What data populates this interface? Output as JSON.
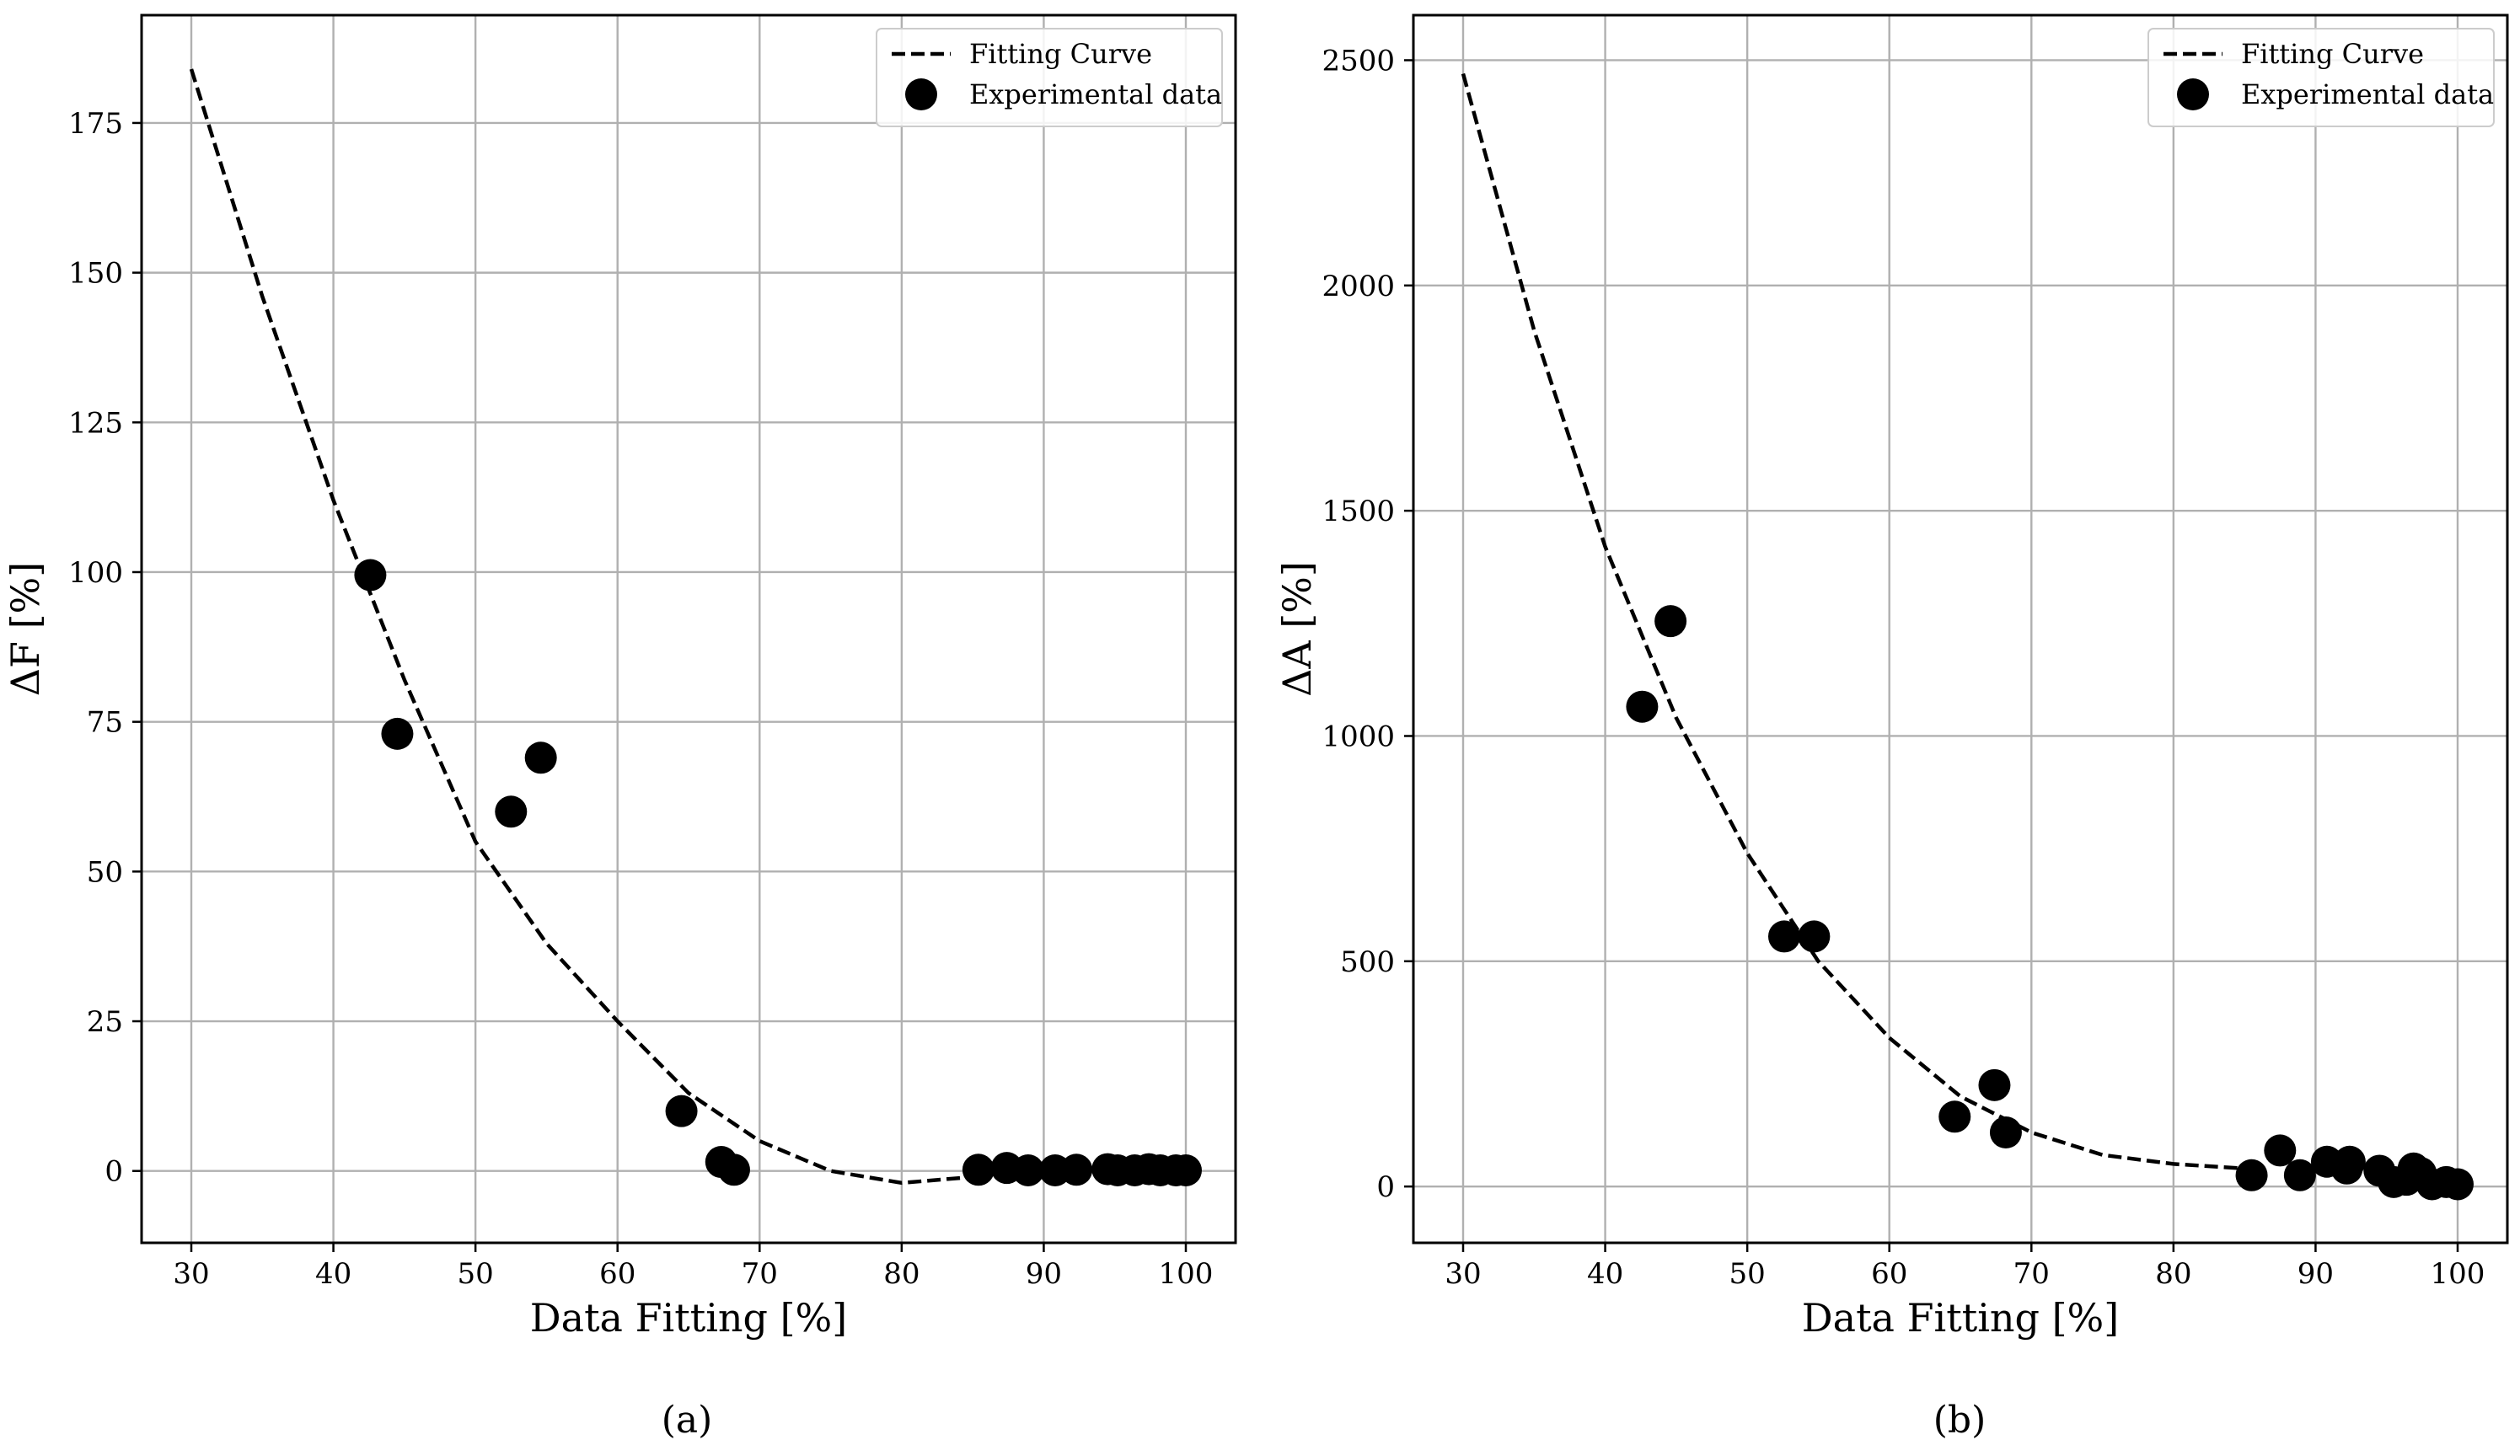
{
  "chart_data": [
    {
      "type": "scatter",
      "panel": "a",
      "caption": "(a)",
      "xlabel": "Data Fitting [%]",
      "ylabel": "ΔF [%]",
      "xlim": [
        26.5,
        103.5
      ],
      "ylim": [
        -12,
        193
      ],
      "xticks": [
        30,
        40,
        50,
        60,
        70,
        80,
        90,
        100
      ],
      "yticks": [
        0,
        25,
        50,
        75,
        100,
        125,
        150,
        175
      ],
      "grid": true,
      "legend_position": "top-right",
      "series": [
        {
          "name": "Fitting Curve",
          "kind": "line",
          "style": "dashed",
          "x": [
            30,
            35,
            40,
            45,
            50,
            55,
            60,
            65,
            70,
            75,
            80,
            85
          ],
          "y": [
            184,
            146,
            112,
            82,
            55,
            38,
            25,
            13,
            5,
            0,
            -2,
            -1
          ]
        },
        {
          "name": "Experimental data",
          "kind": "scatter",
          "x": [
            42.6,
            44.5,
            52.5,
            54.6,
            64.5,
            67.3,
            68.2,
            85.4,
            87.4,
            88.9,
            90.8,
            92.3,
            94.5,
            95.2,
            96.4,
            97.4,
            98.2,
            99.3,
            100
          ],
          "y": [
            99.5,
            73,
            60,
            69,
            10,
            1.5,
            0.2,
            0.2,
            0.5,
            0.1,
            0.1,
            0.2,
            0.3,
            0.1,
            0.1,
            0.3,
            0.1,
            0.1,
            0.1
          ]
        }
      ]
    },
    {
      "type": "scatter",
      "panel": "b",
      "caption": "(b)",
      "xlabel": "Data Fitting [%]",
      "ylabel": "ΔA [%]",
      "xlim": [
        26.5,
        103.5
      ],
      "ylim": [
        -125,
        2600
      ],
      "xticks": [
        30,
        40,
        50,
        60,
        70,
        80,
        90,
        100
      ],
      "yticks": [
        0,
        500,
        1000,
        1500,
        2000,
        2500
      ],
      "grid": true,
      "legend_position": "top-right",
      "series": [
        {
          "name": "Fitting Curve",
          "kind": "line",
          "style": "dashed",
          "x": [
            30,
            35,
            40,
            45,
            50,
            55,
            60,
            65,
            70,
            75,
            80,
            85
          ],
          "y": [
            2470,
            1900,
            1420,
            1040,
            740,
            500,
            330,
            200,
            120,
            70,
            50,
            40
          ]
        },
        {
          "name": "Experimental data",
          "kind": "scatter",
          "x": [
            42.6,
            44.6,
            52.6,
            54.7,
            64.6,
            67.4,
            68.2,
            85.5,
            87.5,
            88.9,
            90.8,
            92.2,
            92.4,
            94.5,
            95.5,
            96.4,
            96.9,
            97.4,
            98.2,
            99.2,
            100
          ],
          "y": [
            1065,
            1255,
            555,
            555,
            155,
            225,
            120,
            25,
            80,
            25,
            55,
            40,
            55,
            35,
            10,
            15,
            40,
            30,
            5,
            10,
            5
          ]
        }
      ]
    }
  ]
}
